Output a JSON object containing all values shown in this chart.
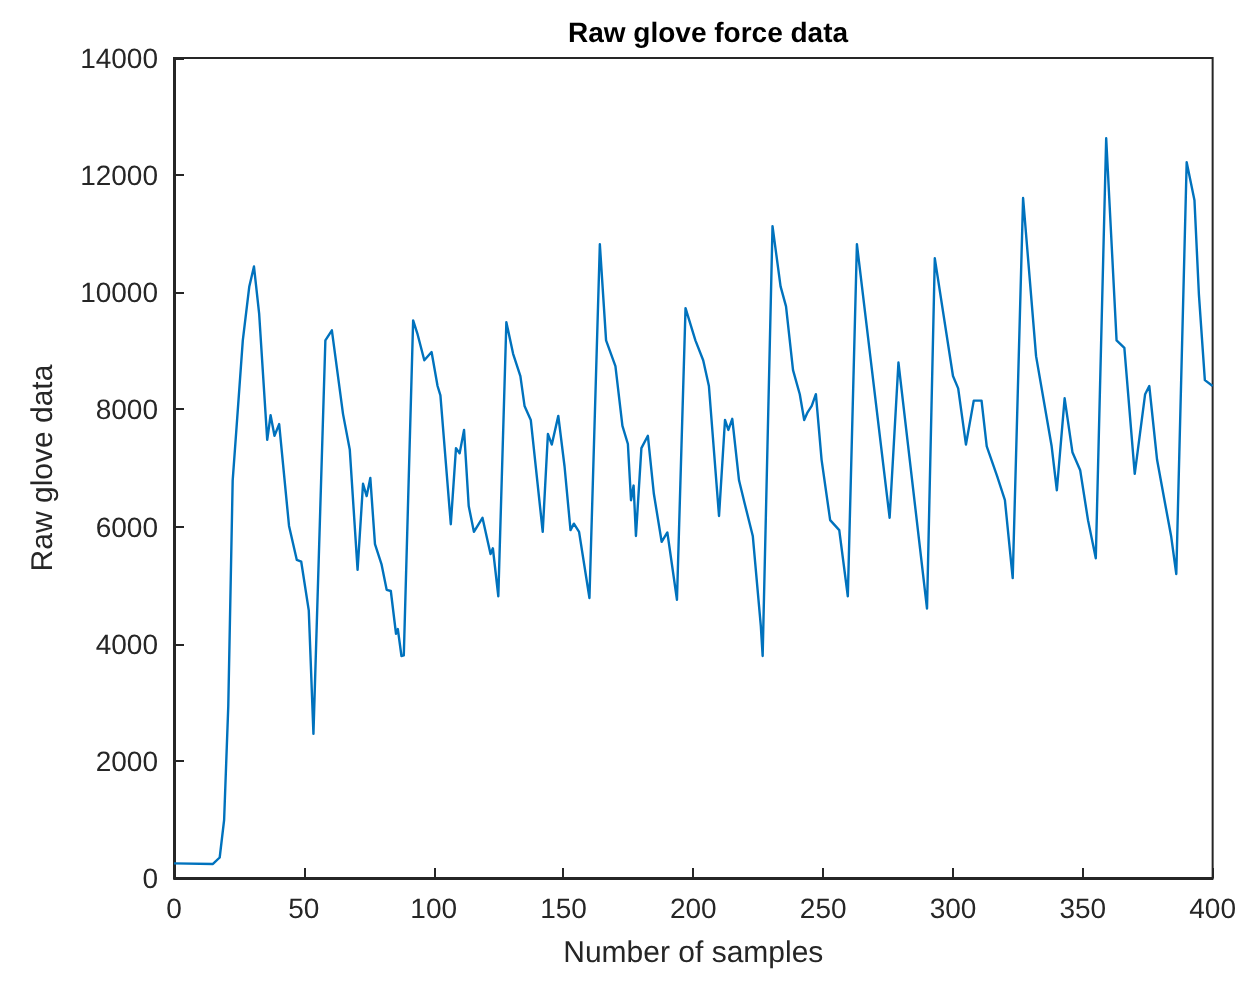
{
  "chart_data": {
    "type": "line",
    "title": "Raw glove force data",
    "xlabel": "Number of samples",
    "ylabel": "Raw glove data",
    "x": [
      0,
      15,
      17.6,
      19.3,
      20.9,
      22.6,
      23.9,
      26.5,
      29,
      30.8,
      32.8,
      35.9,
      37.2,
      38.7,
      40.5,
      44.3,
      47.3,
      49,
      51.9,
      53.7,
      58.3,
      60.8,
      65.1,
      67.7,
      70.7,
      72.8,
      74.2,
      75.6,
      77.4,
      79.9,
      81.9,
      83.5,
      85.5,
      86.2,
      87.6,
      88.5,
      92.1,
      93.7,
      96.4,
      99.2,
      101.5,
      102.6,
      106.6,
      108.6,
      110,
      111.7,
      113.5,
      115.5,
      118.8,
      121.9,
      122.8,
      124.9,
      128,
      130.6,
      133.4,
      135,
      137.4,
      142,
      144,
      145.5,
      148,
      150.4,
      152.7,
      154,
      156,
      160,
      164,
      166.4,
      170,
      172.7,
      174.8,
      176,
      177,
      177.9,
      180,
      182.5,
      184.8,
      187.8,
      190,
      193.7,
      197,
      200.8,
      203.8,
      206,
      209.9,
      212.2,
      213.5,
      215,
      217.6,
      219.8,
      222.9,
      226,
      226.7,
      230.5,
      233.6,
      235.7,
      238.4,
      241,
      242.7,
      244,
      245.6,
      247.2,
      249.4,
      252.7,
      256.2,
      259.5,
      263,
      275.6,
      279,
      290,
      293,
      300,
      302,
      305,
      308,
      311,
      313,
      317,
      320,
      323,
      327,
      332,
      338,
      340,
      343,
      346,
      349,
      352,
      355,
      359,
      363,
      366,
      370,
      374,
      375.6,
      378.6,
      381.7,
      384,
      386,
      390,
      393,
      394.7,
      397,
      400
    ],
    "series": [
      {
        "color": "#0072bd",
        "values": [
          250,
          240,
          350,
          990,
          2930,
          6790,
          7580,
          9180,
          10100,
          10440,
          9630,
          7480,
          7900,
          7550,
          7750,
          6010,
          5430,
          5400,
          4570,
          2460,
          9180,
          9350,
          7920,
          7310,
          5260,
          6730,
          6520,
          6830,
          5700,
          5360,
          4920,
          4900,
          4170,
          4250,
          3790,
          3800,
          9520,
          9300,
          8840,
          8980,
          8400,
          8240,
          6040,
          7340,
          7250,
          7650,
          6350,
          5910,
          6150,
          5530,
          5630,
          4810,
          9490,
          8950,
          8570,
          8060,
          7820,
          5910,
          7580,
          7400,
          7890,
          7030,
          5940,
          6050,
          5910,
          4780,
          10820,
          9180,
          8740,
          7720,
          7410,
          6450,
          6700,
          5840,
          7340,
          7550,
          6560,
          5740,
          5900,
          4750,
          9730,
          9180,
          8840,
          8400,
          6180,
          7820,
          7650,
          7840,
          6790,
          6390,
          5840,
          4300,
          3790,
          11130,
          10100,
          9760,
          8670,
          8260,
          7820,
          7950,
          8060,
          8260,
          7140,
          6110,
          5940,
          4810,
          10820,
          6150,
          8800,
          4600,
          10580,
          8570,
          8360,
          7400,
          8150,
          8150,
          7370,
          6860,
          6450,
          5120,
          11610,
          8910,
          7370,
          6620,
          8190,
          7270,
          6960,
          6110,
          5460,
          12630,
          9180,
          9050,
          6900,
          8260,
          8400,
          7140,
          6390,
          5840,
          5190,
          12220,
          11570,
          9970,
          8500,
          8400
        ]
      }
    ],
    "xlim": [
      0,
      400
    ],
    "xticks": [
      0,
      50,
      100,
      150,
      200,
      250,
      300,
      350,
      400
    ],
    "ylim": [
      0,
      14000
    ],
    "yticks": [
      0,
      2000,
      4000,
      6000,
      8000,
      10000,
      12000,
      14000
    ],
    "grid": false,
    "marker": "none",
    "line_style": "solid"
  }
}
